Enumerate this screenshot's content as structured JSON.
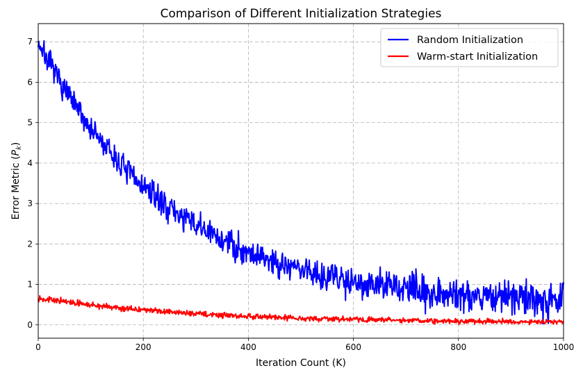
{
  "chart_data": {
    "type": "line",
    "title": "Comparison of Different Initialization Strategies",
    "xlabel": "Iteration Count (K)",
    "ylabel": "Error Metric (",
    "ylabel_sym": "P",
    "ylabel_sub": "k",
    "ylabel_close": ")",
    "xlim": [
      0,
      1000
    ],
    "ylim": [
      -0.33,
      7.45
    ],
    "xticks": [
      0,
      200,
      400,
      600,
      800,
      1000
    ],
    "yticks": [
      0,
      1,
      2,
      3,
      4,
      5,
      6,
      7
    ],
    "grid": true,
    "legend_position": "top-right",
    "series": [
      {
        "name": "Random Initialization",
        "color": "#0000ff",
        "model": {
          "a": 6.5,
          "tau": 250,
          "c": 0.5,
          "noise_start": 0.15,
          "noise_end": 0.22,
          "seed": 7
        }
      },
      {
        "name": "Warm-start Initialization",
        "color": "#ff0000",
        "model": {
          "a": 0.62,
          "tau": 300,
          "c": 0.05,
          "noise_start": 0.035,
          "noise_end": 0.03,
          "seed": 13
        }
      }
    ]
  }
}
